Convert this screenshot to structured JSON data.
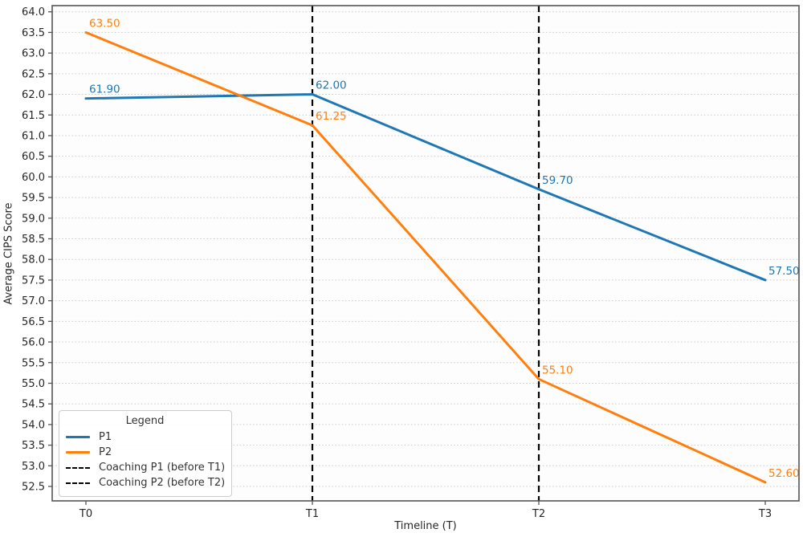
{
  "chart_data": {
    "type": "line",
    "title": "",
    "xlabel": "Timeline (T)",
    "ylabel": "Average CIPS Score",
    "categories": [
      "T0",
      "T1",
      "T2",
      "T3"
    ],
    "series": [
      {
        "name": "P1",
        "color": "#1f77b4",
        "values": [
          61.9,
          62.0,
          59.7,
          57.5
        ],
        "point_labels": [
          "61.90",
          "62.00",
          "59.70",
          "57.50"
        ]
      },
      {
        "name": "P2",
        "color": "#ff7f0e",
        "values": [
          63.5,
          61.25,
          55.1,
          52.6
        ],
        "point_labels": [
          "63.50",
          "61.25",
          "55.10",
          "52.60"
        ]
      }
    ],
    "vlines": [
      {
        "name": "Coaching P1 (before T1)",
        "x_category": "T1",
        "color": "#000000",
        "style": "dashed"
      },
      {
        "name": "Coaching P2 (before T2)",
        "x_category": "T2",
        "color": "#000000",
        "style": "dashed"
      }
    ],
    "legend": {
      "title": "Legend",
      "position": "lower left",
      "entries": [
        {
          "label": "P1",
          "color": "#1f77b4",
          "line": "solid"
        },
        {
          "label": "P2",
          "color": "#ff7f0e",
          "line": "solid"
        },
        {
          "label": "Coaching P1 (before T1)",
          "color": "#000000",
          "line": "dashed"
        },
        {
          "label": "Coaching P2 (before T2)",
          "color": "#000000",
          "line": "dashed"
        }
      ]
    },
    "ylim": [
      52.15,
      64.15
    ],
    "yticks": [
      52.5,
      53.0,
      53.5,
      54.0,
      54.5,
      55.0,
      55.5,
      56.0,
      56.5,
      57.0,
      57.5,
      58.0,
      58.5,
      59.0,
      59.5,
      60.0,
      60.5,
      61.0,
      61.5,
      62.0,
      62.5,
      63.0,
      63.5,
      64.0
    ],
    "grid": "horizontal dotted",
    "grid_color": "#c9c9c9",
    "spine_color": "#555555",
    "tick_label_color": "#262626",
    "plot_background": "#fdfdfd"
  }
}
